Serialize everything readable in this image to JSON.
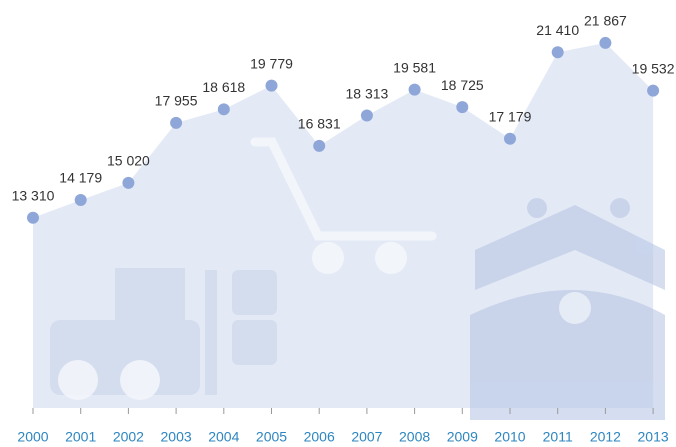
{
  "chart_data": {
    "type": "area",
    "categories": [
      "2000",
      "2001",
      "2002",
      "2003",
      "2004",
      "2005",
      "2006",
      "2007",
      "2008",
      "2009",
      "2010",
      "2011",
      "2012",
      "2013"
    ],
    "values": [
      13310,
      14179,
      15020,
      17955,
      18618,
      19779,
      16831,
      18313,
      19581,
      18725,
      17179,
      21410,
      21867,
      19532
    ],
    "value_labels": [
      "13 310",
      "14 179",
      "15 020",
      "17 955",
      "18 618",
      "19 779",
      "16 831",
      "18 313",
      "19 581",
      "18 725",
      "17 179",
      "21 410",
      "21 867",
      "19 532"
    ],
    "color": "#8fa7d8",
    "area_color": "#dfe6f3",
    "ylim": [
      4000,
      22500
    ]
  }
}
